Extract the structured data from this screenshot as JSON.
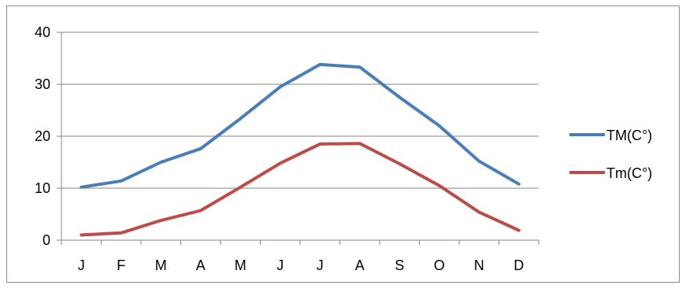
{
  "chart_data": {
    "type": "line",
    "categories": [
      "J",
      "F",
      "M",
      "A",
      "M",
      "J",
      "J",
      "A",
      "S",
      "O",
      "N",
      "D"
    ],
    "ylim": [
      0,
      40
    ],
    "yticks": [
      "0",
      "10",
      "20",
      "30",
      "40"
    ],
    "grid": "horizontal",
    "legend_position": "right",
    "series": [
      {
        "name": "TM(C°)",
        "color": "#4a7ebb",
        "values": [
          10.2,
          11.4,
          15.0,
          17.6,
          23.4,
          29.5,
          33.8,
          33.3,
          27.5,
          22.0,
          15.2,
          10.8
        ]
      },
      {
        "name": "Tm(C°)",
        "color": "#be4b48",
        "values": [
          1.0,
          1.4,
          3.8,
          5.7,
          10.2,
          14.8,
          18.5,
          18.6,
          14.7,
          10.5,
          5.4,
          1.9
        ]
      }
    ]
  }
}
